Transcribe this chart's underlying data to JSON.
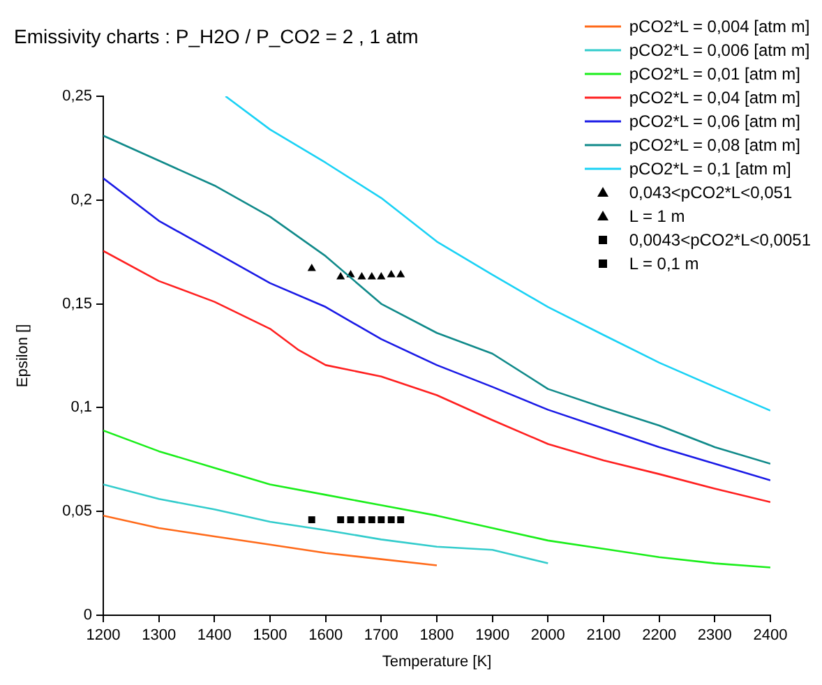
{
  "chart_data": {
    "type": "line",
    "title": "Emissivity charts : P_H2O / P_CO2 = 2 , 1 atm",
    "xlabel": "Temperature [K]",
    "ylabel": "Epsilon []",
    "xlim": [
      1200,
      2400
    ],
    "xticks": [
      1200,
      1300,
      1400,
      1500,
      1600,
      1700,
      1800,
      1900,
      2000,
      2100,
      2200,
      2300,
      2400
    ],
    "ylim": [
      0,
      0.25
    ],
    "yticks": [
      0,
      {
        "value": 0.05,
        "label": "0,05"
      },
      {
        "value": 0.1,
        "label": "0,1"
      },
      {
        "value": 0.15,
        "label": "0,15"
      },
      {
        "value": 0.2,
        "label": "0,2"
      },
      {
        "value": 0.25,
        "label": "0,25"
      }
    ],
    "grid": false,
    "legend": "top right",
    "marker": "none",
    "line_style": "solid",
    "series": [
      {
        "name": "pCO2*L = 0,004 [atm m]",
        "color": "#ff6a1a",
        "x": [
          1200,
          1300,
          1400,
          1500,
          1600,
          1700,
          1800
        ],
        "values": [
          0.048,
          0.042,
          0.038,
          0.034,
          0.03,
          0.027,
          0.024
        ]
      },
      {
        "name": "pCO2*L = 0,006 [atm m]",
        "color": "#33cccc",
        "x": [
          1200,
          1300,
          1400,
          1500,
          1600,
          1700,
          1800,
          1900,
          2000
        ],
        "values": [
          0.063,
          0.056,
          0.051,
          0.045,
          0.041,
          0.0365,
          0.033,
          0.0315,
          0.025
        ]
      },
      {
        "name": "pCO2*L = 0,01 [atm m]",
        "color": "#1aee1a",
        "x": [
          1200,
          1300,
          1400,
          1500,
          1600,
          1700,
          1800,
          1900,
          2000,
          2100,
          2200,
          2300,
          2400
        ],
        "values": [
          0.089,
          0.079,
          0.071,
          0.063,
          0.058,
          0.053,
          0.048,
          0.042,
          0.036,
          0.032,
          0.028,
          0.025,
          0.023
        ]
      },
      {
        "name": "pCO2*L = 0,04 [atm m]",
        "color": "#ff2020",
        "x": [
          1200,
          1300,
          1400,
          1500,
          1550,
          1600,
          1700,
          1800,
          1900,
          2000,
          2100,
          2200,
          2300,
          2400
        ],
        "values": [
          0.1755,
          0.161,
          0.151,
          0.138,
          0.128,
          0.1205,
          0.115,
          0.106,
          0.094,
          0.0825,
          0.0746,
          0.068,
          0.061,
          0.0545
        ]
      },
      {
        "name": "pCO2*L = 0,06 [atm m]",
        "color": "#1a1ae6",
        "x": [
          1200,
          1300,
          1400,
          1500,
          1600,
          1700,
          1800,
          1900,
          2000,
          2100,
          2200,
          2300,
          2400
        ],
        "values": [
          0.2105,
          0.19,
          0.175,
          0.16,
          0.1485,
          0.133,
          0.1205,
          0.11,
          0.099,
          0.09,
          0.081,
          0.073,
          0.065
        ]
      },
      {
        "name": "pCO2*L = 0,08 [atm m]",
        "color": "#108a8a",
        "x": [
          1200,
          1300,
          1400,
          1500,
          1600,
          1700,
          1800,
          1900,
          2000,
          2100,
          2200,
          2300,
          2400
        ],
        "values": [
          0.231,
          0.219,
          0.207,
          0.192,
          0.173,
          0.15,
          0.136,
          0.126,
          0.109,
          0.1,
          0.0914,
          0.081,
          0.073
        ]
      },
      {
        "name": "pCO2*L = 0,1 [atm m]",
        "color": "#1ad2f5",
        "x": [
          1420,
          1500,
          1600,
          1700,
          1800,
          1900,
          2000,
          2100,
          2200,
          2300,
          2400
        ],
        "values": [
          0.25,
          0.234,
          0.218,
          0.201,
          0.18,
          0.164,
          0.1485,
          0.135,
          0.1217,
          0.11,
          0.0986
        ]
      },
      {
        "name": "0,043<pCO2*L<0,051\nL = 1 m",
        "type": "scatter",
        "marker": "triangle",
        "color": "#000000",
        "x": [
          1575,
          1627,
          1645,
          1665,
          1683,
          1700,
          1718,
          1735
        ],
        "values": [
          0.167,
          0.163,
          0.164,
          0.163,
          0.163,
          0.163,
          0.164,
          0.164
        ]
      },
      {
        "name": "0,0043<pCO2*L<0,0051\nL = 0,1 m",
        "type": "scatter",
        "marker": "square",
        "color": "#000000",
        "x": [
          1575,
          1627,
          1645,
          1665,
          1683,
          1700,
          1718,
          1735
        ],
        "values": [
          0.046,
          0.046,
          0.046,
          0.046,
          0.046,
          0.046,
          0.046,
          0.046
        ]
      }
    ]
  }
}
